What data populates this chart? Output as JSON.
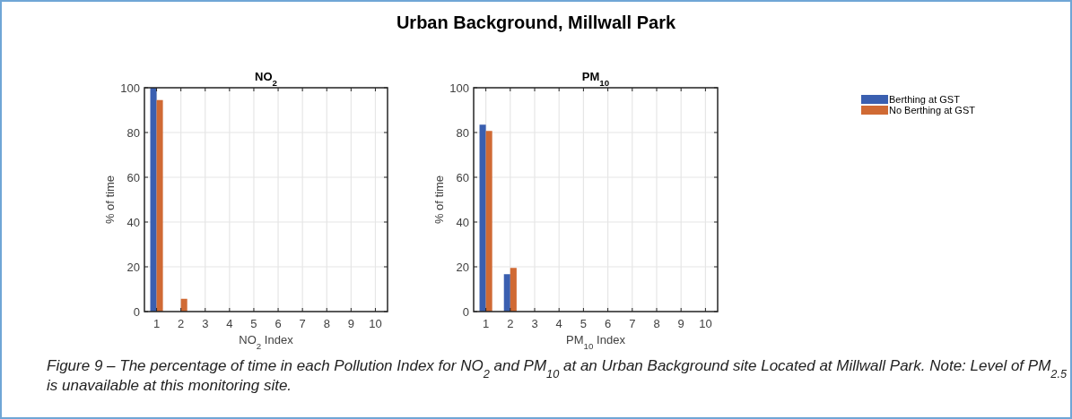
{
  "chart_data": [
    {
      "type": "bar",
      "title": "NO$_{2}$",
      "xlabel": "NO$_{2}$ Index",
      "ylabel": "% of time",
      "annotations": [
        "Urban Background, Millwall Park"
      ],
      "categories": [
        "1",
        "2",
        "3",
        "4",
        "5",
        "6",
        "7",
        "8",
        "9",
        "10"
      ],
      "series": [
        {
          "color": "#3a5fb0",
          "values": [
            100,
            0,
            0,
            0,
            0,
            0,
            0,
            0,
            0,
            0
          ]
        },
        {
          "color": "#d06a34",
          "values": [
            94.5,
            5.7,
            0,
            0,
            0,
            0,
            0,
            0,
            0,
            0
          ]
        }
      ],
      "ylim": [
        0,
        100
      ],
      "yticks": [
        0,
        20,
        40,
        60,
        80,
        100
      ],
      "grid": true,
      "legend": false
    },
    {
      "type": "bar",
      "title": "PM$_{10}$",
      "xlabel": "PM$_{10}$ Index",
      "ylabel": "% of time",
      "annotations": [
        "Figure 9 – The percentage of time in each Pollution Index for NO$_{2}$ and PM$_{10}$ at an Urban Background site Located at Millwall Park. Note: Level of PM$_{2.5}$ is unavailable at this monitoring site."
      ],
      "categories": [
        "1",
        "2",
        "3",
        "4",
        "5",
        "6",
        "7",
        "8",
        "9",
        "10"
      ],
      "series": [
        {
          "name": "Berthing at GST",
          "color": "#3a5fb0",
          "values": [
            83.5,
            16.7,
            0,
            0,
            0,
            0,
            0,
            0,
            0,
            0
          ]
        },
        {
          "name": "No Berthing at GST",
          "color": "#d06a34",
          "values": [
            80.7,
            19.5,
            0,
            0,
            0,
            0,
            0,
            0,
            0,
            0
          ]
        }
      ],
      "ylim": [
        0,
        100
      ],
      "yticks": [
        0,
        20,
        40,
        60,
        80,
        100
      ],
      "grid": true,
      "legend": "right"
    }
  ]
}
